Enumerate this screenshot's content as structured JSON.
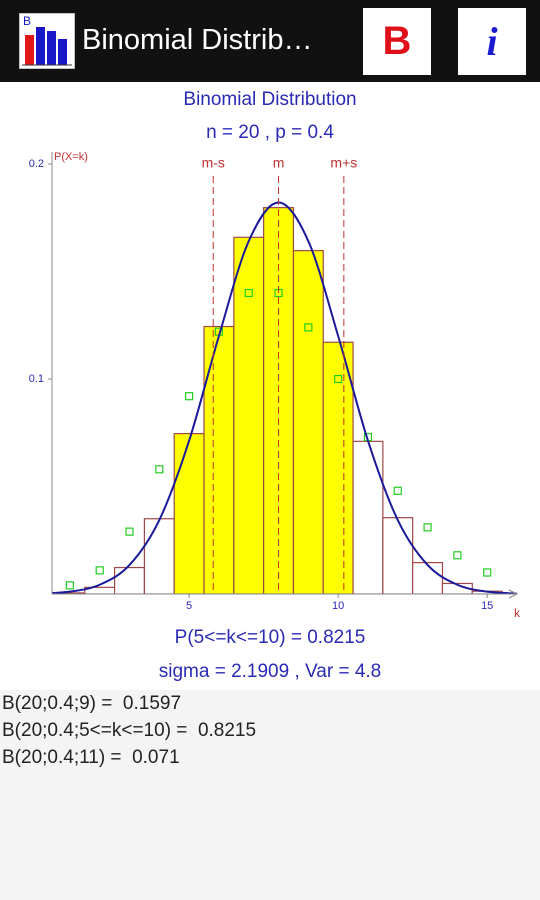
{
  "app_bar": {
    "icon_label": "B",
    "title": "Binomial Distrib…",
    "button_b": "B",
    "button_info": "i"
  },
  "chart_data": {
    "type": "bar",
    "title": "Binomial Distribution",
    "subtitle": "n = 20 , p = 0.4",
    "ylabel": "P(X=k)",
    "xlabel": "k",
    "x": [
      1,
      2,
      3,
      4,
      5,
      6,
      7,
      8,
      9,
      10,
      11,
      12,
      13,
      14,
      15,
      16
    ],
    "xlim": [
      0.4,
      16
    ],
    "xticks": [
      5,
      10,
      15
    ],
    "ylim": [
      0,
      0.2
    ],
    "yticks": [
      0.1,
      0.2
    ],
    "series": [
      {
        "type": "bar",
        "values": [
          0.0005,
          0.0031,
          0.0123,
          0.035,
          0.0746,
          0.1244,
          0.1659,
          0.1797,
          0.1597,
          0.1171,
          0.071,
          0.0355,
          0.0146,
          0.0049,
          0.0013,
          0.0003
        ],
        "colors": [
          "#ffffff",
          "#ffffff",
          "#ffffff",
          "#ffffff",
          "#ffff00",
          "#ffff00",
          "#ffff00",
          "#ffff00",
          "#ffff00",
          "#ffff00",
          "#ffffff",
          "#ffffff",
          "#ffffff",
          "#ffffff",
          "#ffffff",
          "#ffffff"
        ],
        "edge_color": "#a04848"
      },
      {
        "type": "scatter",
        "color": "#22cc22",
        "values": [
          0.004,
          0.011,
          0.029,
          0.058,
          0.092,
          0.122,
          0.14,
          0.14,
          0.124,
          0.1,
          0.073,
          0.048,
          0.031,
          0.018,
          0.01,
          null
        ]
      },
      {
        "type": "line",
        "color": "#1a1a9a",
        "x": [
          0,
          1,
          2,
          3,
          4,
          5,
          6,
          7,
          8,
          9,
          10,
          11,
          12,
          13,
          14,
          15,
          16
        ],
        "values": [
          0.0002,
          0.0011,
          0.0043,
          0.0135,
          0.0344,
          0.0713,
          0.12,
          0.1641,
          0.1821,
          0.1641,
          0.12,
          0.0713,
          0.0344,
          0.0135,
          0.0043,
          0.0011,
          0.0002
        ]
      }
    ],
    "vlines": [
      {
        "value": 5.8091,
        "label": "m-s"
      },
      {
        "value": 8,
        "label": "m"
      },
      {
        "value": 10.1909,
        "label": "m+s"
      }
    ],
    "vline_color": "#c03030",
    "probability_text": "P(5<=k<=10) = 0.8215",
    "stats_text": "sigma = 2.1909 , Var = 4.8"
  },
  "results": [
    "B(20;0.4;9) =  0.1597",
    "B(20;0.4;5<=k<=10) =  0.8215",
    "B(20;0.4;11) =  0.071"
  ]
}
